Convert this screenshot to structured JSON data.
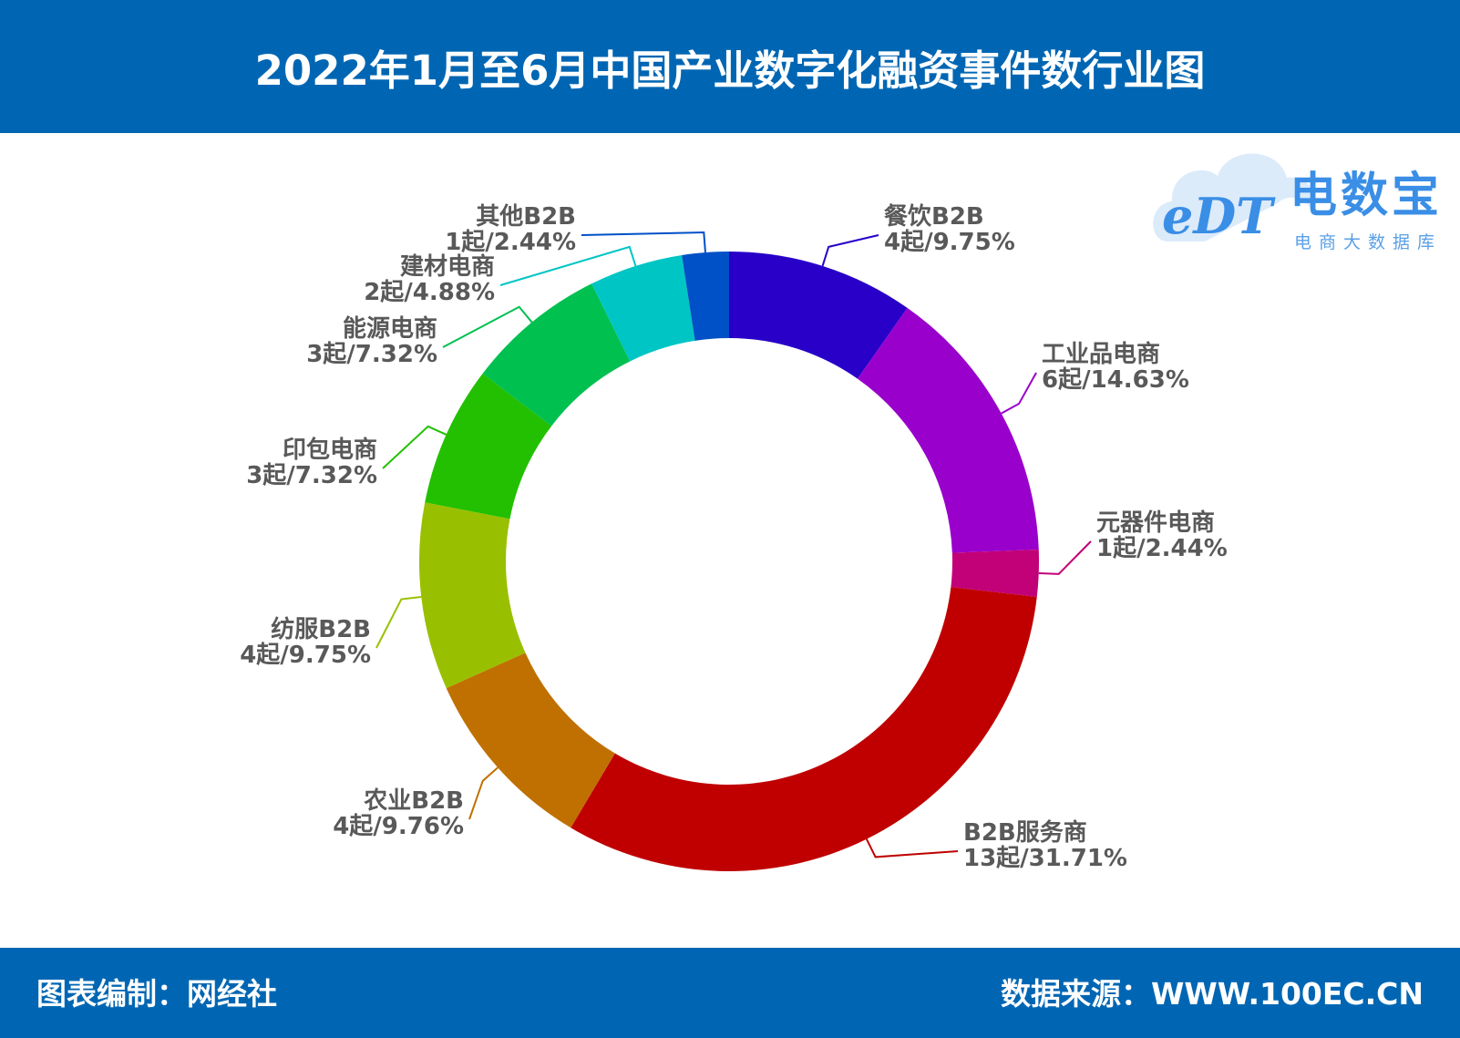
{
  "header": {
    "title": "2022年1月至6月中国产业数字化融资事件数行业图"
  },
  "footer": {
    "left": "图表编制：网经社",
    "right": "数据来源：WWW.100EC.CN"
  },
  "logo": {
    "brand": "电数宝",
    "tagline": "电商大数据库",
    "mark": "eDT"
  },
  "colors": {
    "header_bg": "#0066b3",
    "label_text": "#595959"
  },
  "chart_data": {
    "type": "pie",
    "donut": true,
    "start": "12 o'clock, clockwise",
    "series": [
      {
        "category": "餐饮B2B",
        "count_label": "4起/9.75%",
        "value": 4,
        "percent": 9.75,
        "color": "#2800c8"
      },
      {
        "category": "工业品电商",
        "count_label": "6起/14.63%",
        "value": 6,
        "percent": 14.63,
        "color": "#9900cc"
      },
      {
        "category": "元器件电商",
        "count_label": "1起/2.44%",
        "value": 1,
        "percent": 2.44,
        "color": "#c20078"
      },
      {
        "category": "B2B服务商",
        "count_label": "13起/31.71%",
        "value": 13,
        "percent": 31.71,
        "color": "#c00000"
      },
      {
        "category": "农业B2B",
        "count_label": "4起/9.76%",
        "value": 4,
        "percent": 9.76,
        "color": "#c07000"
      },
      {
        "category": "纺服B2B",
        "count_label": "4起/9.75%",
        "value": 4,
        "percent": 9.75,
        "color": "#99c000"
      },
      {
        "category": "印包电商",
        "count_label": "3起/7.32%",
        "value": 3,
        "percent": 7.32,
        "color": "#22c000"
      },
      {
        "category": "能源电商",
        "count_label": "3起/7.32%",
        "value": 3,
        "percent": 7.32,
        "color": "#00c050"
      },
      {
        "category": "建材电商",
        "count_label": "2起/4.88%",
        "value": 2,
        "percent": 4.88,
        "color": "#00c5c5"
      },
      {
        "category": "其他B2B",
        "count_label": "1起/2.44%",
        "value": 1,
        "percent": 2.44,
        "color": "#0050c8"
      }
    ]
  }
}
